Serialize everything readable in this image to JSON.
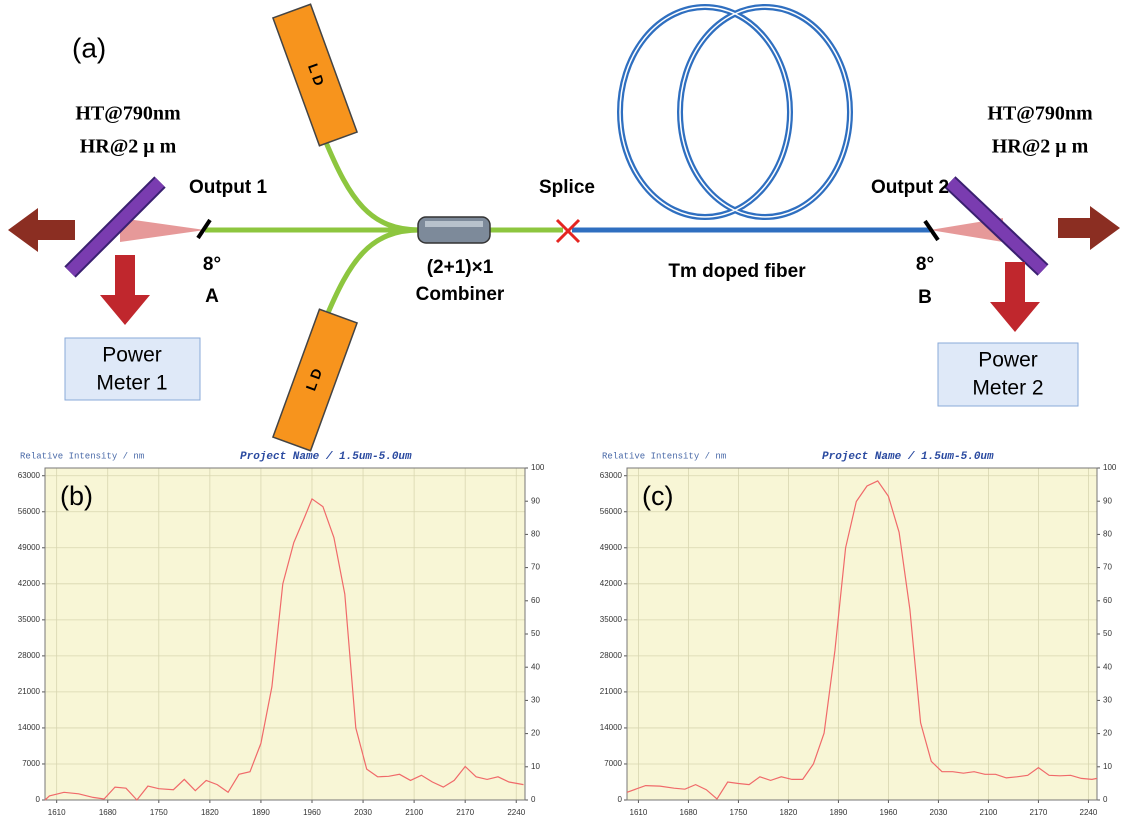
{
  "diagram": {
    "panel_label": "(a)",
    "left_coating": [
      "HT@790nm",
      "HR@2 μ m"
    ],
    "right_coating": [
      "HT@790nm",
      "HR@2 μ m"
    ],
    "output_1": "Output 1",
    "angle_a": "8°",
    "point_a": "A",
    "power_meter_1": [
      "Power",
      "Meter 1"
    ],
    "ld_top": "L D",
    "ld_bottom": "L D",
    "combiner": [
      "(2+1)×1",
      "Combiner"
    ],
    "splice": "Splice",
    "fiber": "Tm doped fiber",
    "output_2": "Output 2",
    "angle_b": "8°",
    "point_b": "B",
    "power_meter_2": [
      "Power",
      "Meter 2"
    ]
  },
  "chart_data": [
    {
      "type": "line",
      "panel_label": "(b)",
      "y_label": "Relative Intensity / nm",
      "title": "Project Name / 1.5um-5.0um",
      "color": "#f06a6a",
      "background": "#f8f6d6",
      "grid": true,
      "x": [
        1594,
        1600,
        1620,
        1640,
        1660,
        1675,
        1690,
        1705,
        1720,
        1735,
        1750,
        1770,
        1785,
        1800,
        1815,
        1830,
        1845,
        1860,
        1875,
        1890,
        1905,
        1920,
        1935,
        1950,
        1960,
        1975,
        1990,
        2005,
        2020,
        2035,
        2050,
        2065,
        2080,
        2095,
        2110,
        2125,
        2140,
        2155,
        2170,
        2185,
        2200,
        2215,
        2230,
        2250
      ],
      "values": [
        0,
        800,
        1500,
        1200,
        500,
        200,
        2500,
        2300,
        0,
        2700,
        2200,
        2000,
        4000,
        1800,
        3800,
        3000,
        1500,
        5000,
        5500,
        11000,
        22000,
        42000,
        50000,
        55000,
        58500,
        57000,
        51000,
        40000,
        14000,
        6000,
        4500,
        4600,
        5000,
        3800,
        4800,
        3500,
        2500,
        3800,
        6500,
        4500,
        4000,
        4500,
        3500,
        3000
      ],
      "xlim": [
        1594,
        2252
      ],
      "xticks": [
        1610,
        1680,
        1750,
        1820,
        1890,
        1960,
        2030,
        2100,
        2170,
        2240
      ],
      "ylim": [
        0,
        64500
      ],
      "yticks": [
        0,
        7000,
        14000,
        21000,
        28000,
        35000,
        42000,
        49000,
        56000,
        63000
      ],
      "y2lim": [
        0,
        100
      ],
      "y2ticks": [
        0,
        10,
        20,
        30,
        40,
        50,
        60,
        70,
        80,
        90,
        100
      ]
    },
    {
      "type": "line",
      "panel_label": "(c)",
      "y_label": "Relative Intensity / nm",
      "title": "Project Name / 1.5um-5.0um",
      "color": "#f06a6a",
      "background": "#f8f6d6",
      "grid": true,
      "x": [
        1594,
        1620,
        1640,
        1660,
        1675,
        1690,
        1705,
        1720,
        1735,
        1750,
        1765,
        1780,
        1795,
        1810,
        1825,
        1840,
        1855,
        1870,
        1885,
        1900,
        1915,
        1930,
        1945,
        1960,
        1975,
        1990,
        2005,
        2020,
        2035,
        2050,
        2065,
        2080,
        2095,
        2110,
        2125,
        2140,
        2155,
        2170,
        2185,
        2200,
        2215,
        2230,
        2245,
        2252
      ],
      "values": [
        1500,
        2800,
        2700,
        2300,
        2100,
        3000,
        2000,
        200,
        3500,
        3200,
        3000,
        4500,
        3800,
        4500,
        4000,
        4000,
        7000,
        13000,
        29000,
        49000,
        58000,
        61000,
        62000,
        59000,
        52000,
        37000,
        15000,
        7500,
        5500,
        5500,
        5200,
        5500,
        5000,
        5000,
        4300,
        4500,
        4800,
        6300,
        4800,
        4700,
        4800,
        4200,
        4000,
        4200
      ],
      "xlim": [
        1594,
        2252
      ],
      "xticks": [
        1610,
        1680,
        1750,
        1820,
        1890,
        1960,
        2030,
        2100,
        2170,
        2240
      ],
      "ylim": [
        0,
        64500
      ],
      "yticks": [
        0,
        7000,
        14000,
        21000,
        28000,
        35000,
        42000,
        49000,
        56000,
        63000
      ],
      "y2lim": [
        0,
        100
      ],
      "y2ticks": [
        0,
        10,
        20,
        30,
        40,
        50,
        60,
        70,
        80,
        90,
        100
      ]
    }
  ]
}
